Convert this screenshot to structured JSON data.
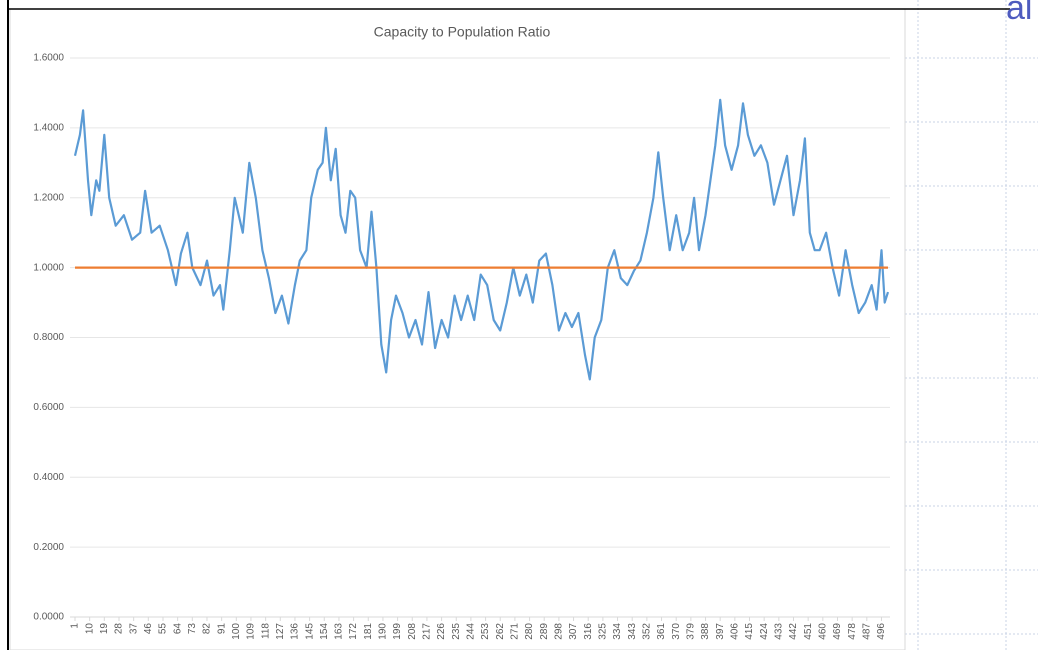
{
  "slide": {
    "fragment": "al"
  },
  "chart_data": {
    "type": "line",
    "title": "Capacity to Population Ratio",
    "series": [
      {
        "color": "#5b9bd5",
        "x": [
          1,
          4,
          6,
          9,
          11,
          14,
          16,
          19,
          22,
          26,
          31,
          36,
          41,
          44,
          48,
          53,
          58,
          63,
          66,
          70,
          73,
          78,
          82,
          86,
          90,
          92,
          96,
          99,
          104,
          108,
          112,
          116,
          120,
          124,
          128,
          132,
          136,
          139,
          143,
          146,
          150,
          153,
          155,
          158,
          161,
          164,
          167,
          170,
          173,
          176,
          180,
          183,
          186,
          189,
          192,
          195,
          198,
          202,
          206,
          210,
          214,
          218,
          222,
          226,
          230,
          234,
          238,
          242,
          246,
          250,
          254,
          258,
          262,
          266,
          270,
          274,
          278,
          282,
          286,
          290,
          294,
          298,
          302,
          306,
          310,
          314,
          317,
          320,
          324,
          328,
          332,
          336,
          340,
          344,
          348,
          352,
          356,
          359,
          362,
          366,
          370,
          374,
          378,
          381,
          384,
          388,
          391,
          394,
          397,
          400,
          404,
          408,
          411,
          414,
          418,
          422,
          426,
          430,
          434,
          438,
          442,
          446,
          449,
          452,
          455,
          458,
          462,
          466,
          470,
          474,
          478,
          482,
          486,
          490,
          493,
          496,
          498,
          500
        ],
        "values": [
          1.32,
          1.38,
          1.45,
          1.25,
          1.15,
          1.25,
          1.22,
          1.38,
          1.2,
          1.12,
          1.15,
          1.08,
          1.1,
          1.22,
          1.1,
          1.12,
          1.05,
          0.95,
          1.04,
          1.1,
          1.0,
          0.95,
          1.02,
          0.92,
          0.95,
          0.88,
          1.05,
          1.2,
          1.1,
          1.3,
          1.2,
          1.05,
          0.97,
          0.87,
          0.92,
          0.84,
          0.95,
          1.02,
          1.05,
          1.2,
          1.28,
          1.3,
          1.4,
          1.25,
          1.34,
          1.15,
          1.1,
          1.22,
          1.2,
          1.05,
          1.0,
          1.16,
          1.0,
          0.78,
          0.7,
          0.85,
          0.92,
          0.87,
          0.8,
          0.85,
          0.78,
          0.93,
          0.77,
          0.85,
          0.8,
          0.92,
          0.85,
          0.92,
          0.85,
          0.98,
          0.95,
          0.85,
          0.82,
          0.9,
          1.0,
          0.92,
          0.98,
          0.9,
          1.02,
          1.04,
          0.95,
          0.82,
          0.87,
          0.83,
          0.87,
          0.75,
          0.68,
          0.8,
          0.85,
          1.0,
          1.05,
          0.97,
          0.95,
          0.99,
          1.02,
          1.1,
          1.2,
          1.33,
          1.2,
          1.05,
          1.15,
          1.05,
          1.1,
          1.2,
          1.05,
          1.15,
          1.25,
          1.35,
          1.48,
          1.35,
          1.28,
          1.35,
          1.47,
          1.38,
          1.32,
          1.35,
          1.3,
          1.18,
          1.25,
          1.32,
          1.15,
          1.25,
          1.37,
          1.1,
          1.05,
          1.05,
          1.1,
          1.0,
          0.92,
          1.05,
          0.95,
          0.87,
          0.9,
          0.95,
          0.88,
          1.05,
          0.9,
          0.93
        ]
      },
      {
        "color": "#ed7d31",
        "x": [
          1,
          500
        ],
        "values": [
          1.0,
          1.0
        ]
      }
    ],
    "xlim": [
      1,
      500
    ],
    "xticks": [
      1,
      10,
      19,
      28,
      37,
      46,
      55,
      64,
      73,
      82,
      91,
      100,
      109,
      118,
      127,
      136,
      145,
      154,
      163,
      172,
      181,
      190,
      199,
      208,
      217,
      226,
      235,
      244,
      253,
      262,
      271,
      280,
      289,
      298,
      307,
      316,
      325,
      334,
      343,
      352,
      361,
      370,
      379,
      388,
      397,
      406,
      415,
      424,
      433,
      442,
      451,
      460,
      469,
      478,
      487,
      496
    ],
    "ylim": [
      0,
      1.6
    ],
    "yticks": [
      {
        "value": 0,
        "label": "0.0000"
      },
      {
        "value": 0.2,
        "label": "0.2000"
      },
      {
        "value": 0.4,
        "label": "0.4000"
      },
      {
        "value": 0.6,
        "label": "0.6000"
      },
      {
        "value": 0.8,
        "label": "0.8000"
      },
      {
        "value": 1.0,
        "label": "1.0000"
      },
      {
        "value": 1.2,
        "label": "1.2000"
      },
      {
        "value": 1.4,
        "label": "1.4000"
      },
      {
        "value": 1.6,
        "label": "1.6000"
      }
    ],
    "grid": true
  }
}
